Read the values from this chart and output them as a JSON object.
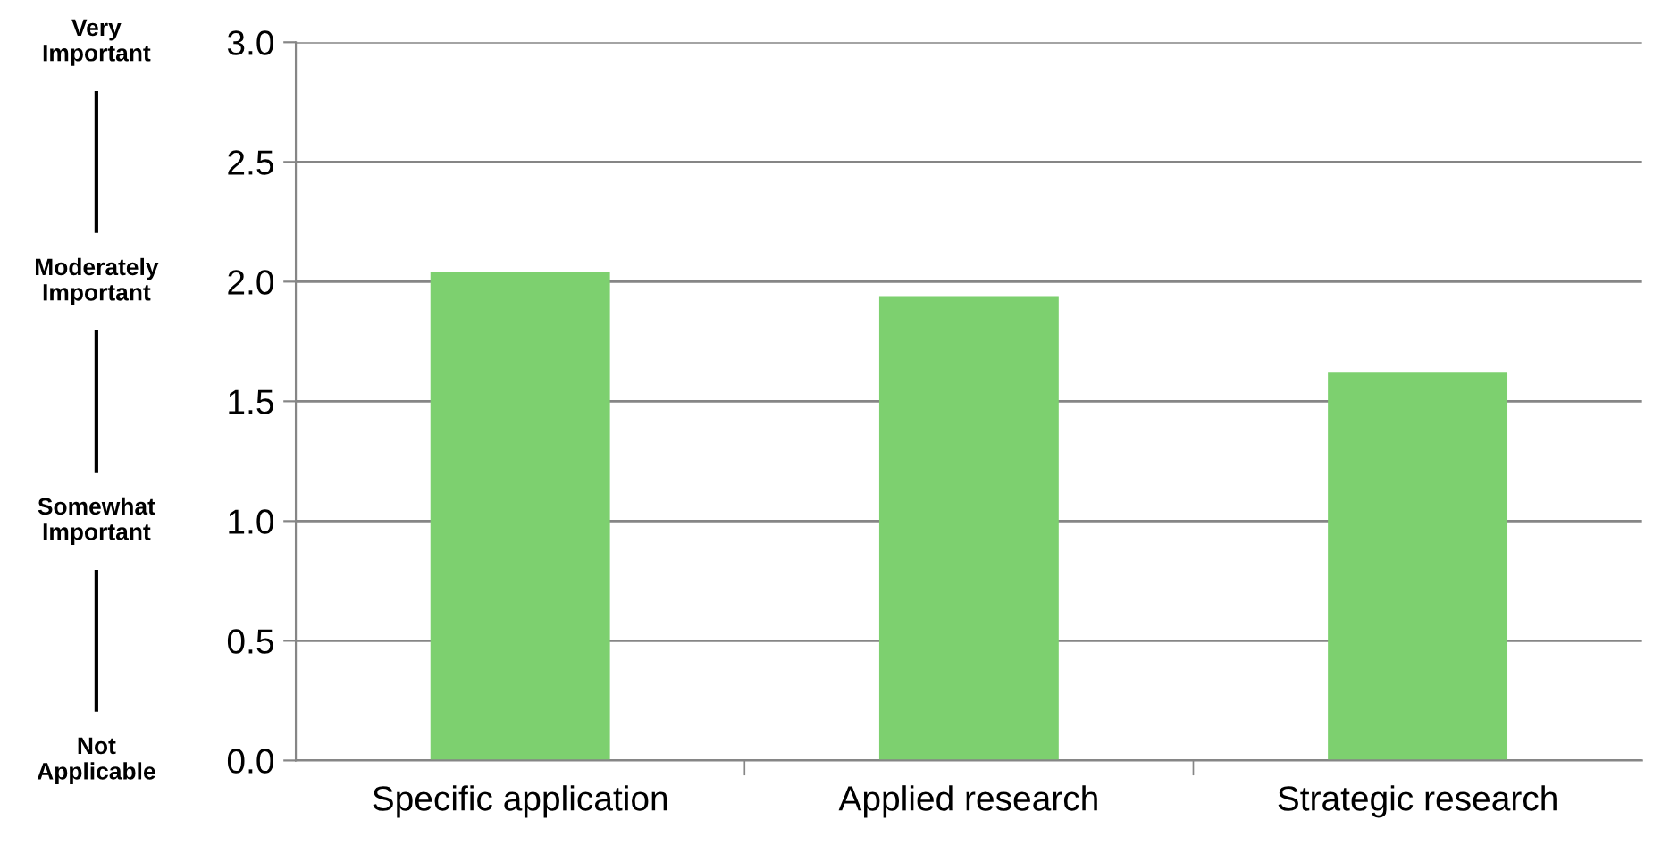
{
  "chart_data": {
    "type": "bar",
    "categories": [
      "Specific application",
      "Applied research",
      "Strategic research"
    ],
    "values": [
      2.04,
      1.94,
      1.62
    ],
    "color": "#7dd06f",
    "ylim": [
      0,
      3
    ],
    "yticks": [
      {
        "value": 0,
        "label": "0.0"
      },
      {
        "value": 0.5,
        "label": "0.5"
      },
      {
        "value": 1,
        "label": "1.0"
      },
      {
        "value": 1.5,
        "label": "1.5"
      },
      {
        "value": 2,
        "label": "2.0"
      },
      {
        "value": 2.5,
        "label": "2.5"
      },
      {
        "value": 3,
        "label": "3.0"
      }
    ],
    "grid": "y",
    "legend": false,
    "annotations": [
      "Very\nImportant",
      "Moderately\nImportant",
      "Somewhat\nImportant",
      "Not\nApplicable"
    ]
  }
}
